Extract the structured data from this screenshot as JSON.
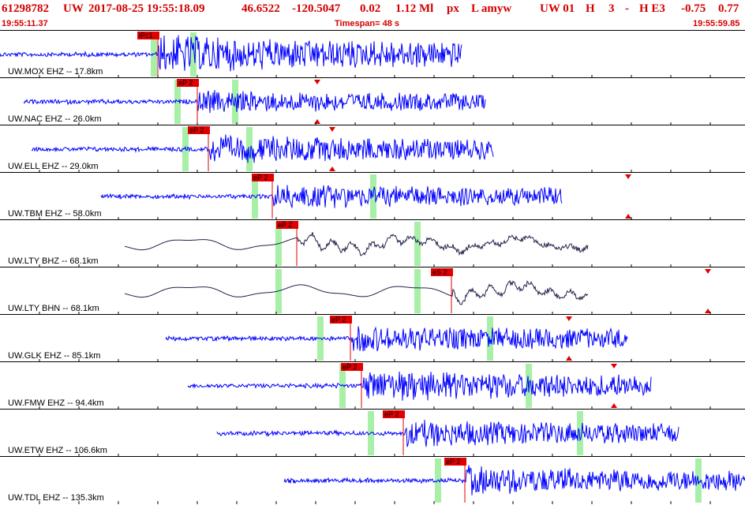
{
  "header": {
    "evid": "61298782",
    "net": "UW",
    "datetime": "2017-08-25 19:55:18.09",
    "lat": "46.6522",
    "lon": "-120.5047",
    "depth": "0.02",
    "mag": "1.12 Ml",
    "type": "px",
    "flags": "L amyw",
    "src": "UW 01",
    "h": "H",
    "n": "3",
    "dash": "-",
    "he": "H E3",
    "v1": "-0.75",
    "v2": "0.77"
  },
  "subheader": {
    "start_time": "19:55:11.37",
    "timespan": "Timespan=  48 s",
    "end_time": "19:55:59.85"
  },
  "colors": {
    "header_text": "#d40000",
    "trace_blue": "#0000ff",
    "trace_dark": "#22224a",
    "pick_red": "#e00000",
    "window_green": "#a8f0a8"
  },
  "traces": [
    {
      "label": "UW.MOX EHZ -- 17.8km",
      "pick": "iPc1",
      "color": "blue",
      "start": 0,
      "end": 585,
      "pick_x": 198,
      "onset": 200,
      "amp": 0.85,
      "greens": [
        195,
        245
      ],
      "tri": null
    },
    {
      "label": "UW.NAC EHZ -- 26.0km",
      "pick": "eP 2",
      "color": "blue",
      "start": 30,
      "end": 615,
      "pick_x": 248,
      "onset": 250,
      "amp": 0.45,
      "greens": [
        225,
        298
      ],
      "tri": 402
    },
    {
      "label": "UW.ELL EHZ -- 29.0km",
      "pick": "eP 2",
      "color": "blue",
      "start": 40,
      "end": 625,
      "pick_x": 262,
      "onset": 265,
      "amp": 0.6,
      "greens": [
        235,
        316
      ],
      "tri": 421
    },
    {
      "label": "UW.TBM EHZ -- 58.0km",
      "pick": "eP 2",
      "color": "blue",
      "start": 128,
      "end": 712,
      "pick_x": 343,
      "onset": 346,
      "amp": 0.5,
      "greens": [
        323,
        473
      ],
      "tri": 796
    },
    {
      "label": "UW.LTY BHZ -- 68.1km",
      "pick": "eP 2",
      "color": "dark",
      "start": 158,
      "end": 745,
      "pick_x": 374,
      "onset": 377,
      "amp": 0.55,
      "greens": [
        353,
        529
      ],
      "tri": null
    },
    {
      "label": "UW.LTY BHN -- 68.1km",
      "pick": "eS 2",
      "color": "dark",
      "start": 158,
      "end": 745,
      "pick_x": 570,
      "onset": 573,
      "amp": 0.5,
      "greens": [
        353,
        529
      ],
      "tri": 897
    },
    {
      "label": "UW.GLK EHZ -- 85.1km",
      "pick": "eP 2",
      "color": "blue",
      "start": 210,
      "end": 795,
      "pick_x": 442,
      "onset": 445,
      "amp": 0.55,
      "greens": [
        406,
        621
      ],
      "tri": 721
    },
    {
      "label": "UW.FMW EHZ -- 94.4km",
      "pick": "eP 2",
      "color": "blue",
      "start": 238,
      "end": 825,
      "pick_x": 456,
      "onset": 459,
      "amp": 0.7,
      "greens": [
        434,
        670
      ],
      "tri": 778
    },
    {
      "label": "UW.ETW EHZ -- 106.6km",
      "pick": "eP 2",
      "color": "blue",
      "start": 275,
      "end": 860,
      "pick_x": 509,
      "onset": 512,
      "amp": 0.55,
      "greens": [
        470,
        735
      ],
      "tri": null
    },
    {
      "label": "UW.TDL EHZ -- 135.3km",
      "pick": "eP 2",
      "color": "blue",
      "start": 360,
      "end": 944,
      "pick_x": 587,
      "onset": 590,
      "amp": 0.6,
      "greens": [
        555,
        885
      ],
      "tri": null
    }
  ]
}
